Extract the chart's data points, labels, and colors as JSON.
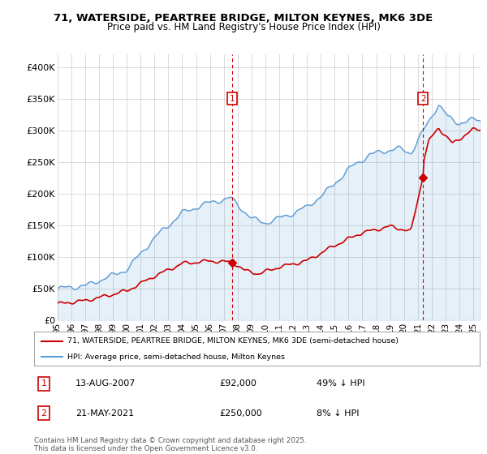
{
  "title_line1": "71, WATERSIDE, PEARTREE BRIDGE, MILTON KEYNES, MK6 3DE",
  "title_line2": "Price paid vs. HM Land Registry's House Price Index (HPI)",
  "ylim": [
    0,
    420000
  ],
  "yticks": [
    0,
    50000,
    100000,
    150000,
    200000,
    250000,
    300000,
    350000,
    400000
  ],
  "ytick_labels": [
    "£0",
    "£50K",
    "£100K",
    "£150K",
    "£200K",
    "£250K",
    "£300K",
    "£350K",
    "£400K"
  ],
  "hpi_color": "#5b9bd5",
  "hpi_fill_color": "#ddeeff",
  "price_color": "#cc0000",
  "sale1_date": "13-AUG-2007",
  "sale1_price": 92000,
  "sale1_hpi_pct": "49%",
  "sale2_date": "21-MAY-2021",
  "sale2_price": 250000,
  "sale2_hpi_pct": "8%",
  "sale1_year": 2007.62,
  "sale2_year": 2021.38,
  "legend_line1": "71, WATERSIDE, PEARTREE BRIDGE, MILTON KEYNES, MK6 3DE (semi-detached house)",
  "legend_line2": "HPI: Average price, semi-detached house, Milton Keynes",
  "footer": "Contains HM Land Registry data © Crown copyright and database right 2025.\nThis data is licensed under the Open Government Licence v3.0.",
  "background_color": "#ffffff",
  "grid_color": "#cccccc",
  "xlim_start": 1995.0,
  "xlim_end": 2025.5
}
